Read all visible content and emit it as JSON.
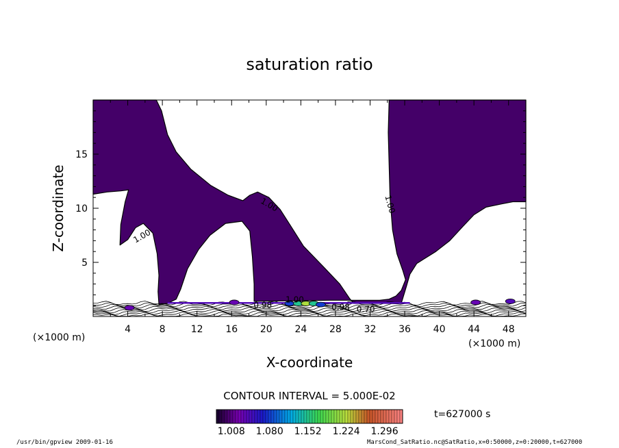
{
  "chart_data": {
    "type": "contour",
    "title": "saturation ratio",
    "xlabel": "X-coordinate",
    "ylabel": "Z-coordinate",
    "x_unit_left": "(×1000 m)",
    "x_unit_right": "(×1000 m)",
    "xlim": [
      0,
      50
    ],
    "ylim": [
      0,
      20
    ],
    "xticks": [
      "4",
      "8",
      "12",
      "16",
      "20",
      "24",
      "28",
      "32",
      "36",
      "40",
      "44",
      "48"
    ],
    "yticks": [
      "5",
      "10",
      "15"
    ],
    "contour_interval_label": "CONTOUR INTERVAL = 5.000E-02",
    "time_label": "t=627000 s",
    "colorbar_ticks": [
      "1.008",
      "1.080",
      "1.152",
      "1.224",
      "1.296"
    ],
    "colorbar_range": [
      0.98,
      1.33
    ],
    "contour_labels": [
      {
        "text": "1.00",
        "x": 5.8,
        "y": 7.2,
        "angle": -30
      },
      {
        "text": "1.00",
        "x": 20.2,
        "y": 10.1,
        "angle": 30
      },
      {
        "text": "1.00",
        "x": 34.0,
        "y": 10.3,
        "angle": 75
      },
      {
        "text": "1.00",
        "x": 23.3,
        "y": 1.3,
        "angle": 0
      },
      {
        "text": "0.98",
        "x": 19.6,
        "y": 0.8,
        "angle": 0
      },
      {
        "text": "0.98",
        "x": 28.6,
        "y": 0.6,
        "angle": 0
      },
      {
        "text": "0.70",
        "x": 31.5,
        "y": 0.4,
        "angle": 0
      }
    ],
    "supersaturated_regions": [
      [
        [
          0,
          20
        ],
        [
          7.3,
          20
        ],
        [
          7.9,
          19
        ],
        [
          8.6,
          16.8
        ],
        [
          9.6,
          15.2
        ],
        [
          11.3,
          13.6
        ],
        [
          13.6,
          12.1
        ],
        [
          15.6,
          11.2
        ],
        [
          17.3,
          10.7
        ],
        [
          18.1,
          11.2
        ],
        [
          19,
          11.5
        ],
        [
          20.3,
          11
        ],
        [
          21.6,
          9.9
        ],
        [
          22.8,
          8.4
        ],
        [
          24.3,
          6.5
        ],
        [
          26.6,
          4.6
        ],
        [
          28.5,
          3
        ],
        [
          29.6,
          1.7
        ],
        [
          30.1,
          1.2
        ],
        [
          34.3,
          1.2
        ],
        [
          35.6,
          1.2
        ],
        [
          36.2,
          2.8
        ],
        [
          36.6,
          3.9
        ],
        [
          37.4,
          4.9
        ],
        [
          38.2,
          5.3
        ],
        [
          39.6,
          6
        ],
        [
          41.2,
          7
        ],
        [
          42.7,
          8.3
        ],
        [
          44,
          9.4
        ],
        [
          45.4,
          10.1
        ],
        [
          47.2,
          10.4
        ],
        [
          48.5,
          10.6
        ],
        [
          50,
          10.6
        ],
        [
          50,
          20
        ],
        [
          34.2,
          20
        ],
        [
          34.1,
          17
        ],
        [
          34.2,
          14
        ],
        [
          34.3,
          11
        ],
        [
          34.6,
          8
        ],
        [
          35.1,
          5.8
        ],
        [
          35.8,
          4.2
        ],
        [
          36.1,
          3.4
        ],
        [
          35.6,
          2.4
        ],
        [
          35,
          1.9
        ],
        [
          34.2,
          1.6
        ],
        [
          33.1,
          1.5
        ],
        [
          32.6,
          1.5
        ],
        [
          31.1,
          1.5
        ],
        [
          27.4,
          1.5
        ],
        [
          18.6,
          1.4
        ],
        [
          18.6,
          3
        ],
        [
          18.4,
          5.5
        ],
        [
          18.1,
          7.9
        ],
        [
          17.2,
          8.8
        ],
        [
          15.3,
          8.6
        ],
        [
          13.5,
          7.5
        ],
        [
          12.2,
          6.2
        ],
        [
          10.9,
          4.4
        ],
        [
          10.1,
          2.5
        ],
        [
          9.6,
          1.6
        ],
        [
          8.6,
          1.2
        ],
        [
          7.6,
          1.1
        ],
        [
          7.5,
          2.3
        ],
        [
          7.6,
          3.8
        ],
        [
          7.4,
          5.8
        ],
        [
          6.9,
          7.7
        ],
        [
          5.8,
          8.6
        ],
        [
          4.9,
          8.2
        ],
        [
          4,
          7.1
        ],
        [
          3.1,
          6.6
        ],
        [
          3.2,
          8.5
        ],
        [
          3.7,
          10.6
        ],
        [
          4.1,
          11.7
        ],
        [
          3.2,
          11.6
        ],
        [
          1.6,
          11.5
        ],
        [
          0,
          11.3
        ]
      ]
    ],
    "surface_band": {
      "x": [
        0,
        50
      ],
      "y": [
        0,
        1.3
      ]
    },
    "anomaly_blobs": [
      {
        "x": 22.7,
        "y": 1.2,
        "value": 1.08
      },
      {
        "x": 23.7,
        "y": 1.2,
        "value": 1.15
      },
      {
        "x": 24.6,
        "y": 1.2,
        "value": 1.22
      },
      {
        "x": 25.5,
        "y": 1.2,
        "value": 1.15
      },
      {
        "x": 26.3,
        "y": 1.1,
        "value": 1.08
      },
      {
        "x": 4.2,
        "y": 0.8,
        "value": 1.03
      },
      {
        "x": 16.3,
        "y": 1.3,
        "value": 1.03
      },
      {
        "x": 44.2,
        "y": 1.3,
        "value": 1.03
      },
      {
        "x": 48.2,
        "y": 1.4,
        "value": 1.04
      }
    ]
  },
  "footer_left": "/usr/bin/gpview  2009-01-16",
  "footer_right": "MarsCond_SatRatio.nc@SatRatio,x=0:50000,z=0:20000,t=627000"
}
